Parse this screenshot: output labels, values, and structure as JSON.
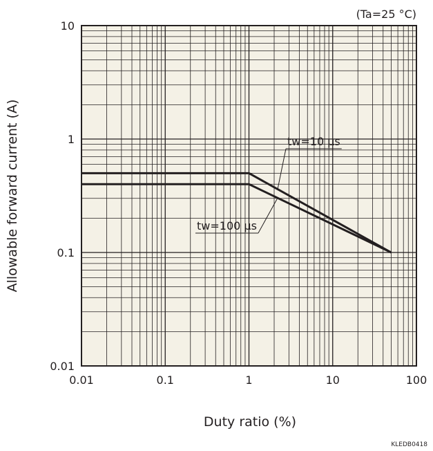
{
  "chart_data": {
    "type": "line",
    "xlabel": "Duty ratio (%)",
    "ylabel": "Allowable forward current (A)",
    "condition": "(Ta=25 °C)",
    "code": "KLEDB0418",
    "x_scale": "log",
    "y_scale": "log",
    "xlim": [
      0.01,
      100
    ],
    "ylim": [
      0.01,
      10
    ],
    "x_ticks": [
      0.01,
      0.1,
      1,
      10,
      100
    ],
    "x_tick_labels": [
      "0.01",
      "0.1",
      "1",
      "10",
      "100"
    ],
    "y_ticks": [
      0.01,
      0.1,
      1,
      10
    ],
    "y_tick_labels": [
      "0.01",
      "0.1",
      "1",
      "10"
    ],
    "grid": true,
    "background": "#f4f1e6",
    "line_color": "#231f20",
    "series": [
      {
        "name": "tw=10 μs",
        "x": [
          0.01,
          1,
          50
        ],
        "y": [
          0.5,
          0.5,
          0.1
        ]
      },
      {
        "name": "tw=100 μs",
        "x": [
          0.01,
          1,
          50
        ],
        "y": [
          0.4,
          0.4,
          0.1
        ]
      }
    ]
  }
}
